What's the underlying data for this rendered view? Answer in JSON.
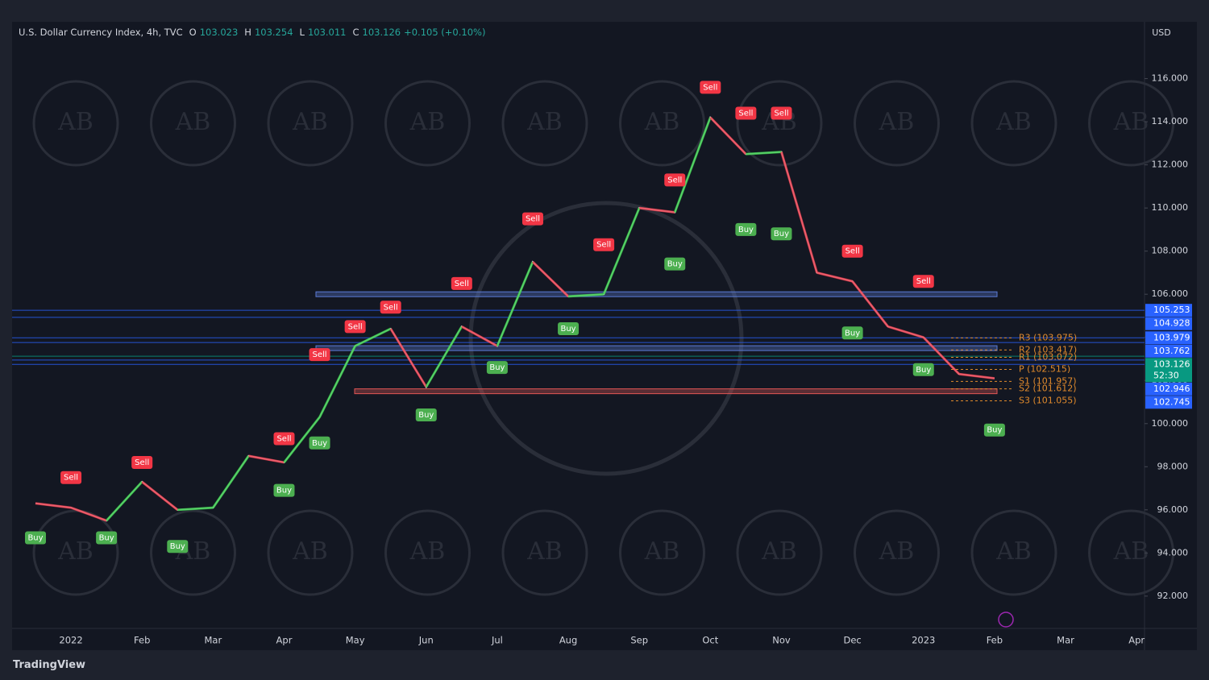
{
  "chart_data": {
    "type": "line",
    "title": "U.S. Dollar Currency Index, 4h, TVC",
    "ohlc": [
      {
        "name": "O",
        "value": 103.023
      },
      {
        "name": "H",
        "value": 103.254
      },
      {
        "name": "L",
        "value": 103.011
      },
      {
        "name": "C",
        "value": 103.126
      }
    ],
    "change": "+0.105 (+0.10%)",
    "currency": "USD",
    "categories": [
      null,
      "2022",
      null,
      "Feb",
      null,
      "Mar",
      null,
      "Apr",
      null,
      "May",
      null,
      "Jun",
      null,
      "Jul",
      null,
      "Aug",
      null,
      "Sep",
      null,
      "Oct",
      null,
      "Nov",
      null,
      "Dec",
      null,
      "2023",
      null,
      "Feb",
      null,
      "Mar",
      null,
      "Apr"
    ],
    "values": [
      96.3,
      96.1,
      95.5,
      97.3,
      96.0,
      96.1,
      98.5,
      98.2,
      100.3,
      103.6,
      104.4,
      101.7,
      104.5,
      103.6,
      107.5,
      105.9,
      106.0,
      110.0,
      109.8,
      114.2,
      112.5,
      112.6,
      107.0,
      106.6,
      104.5,
      104.0,
      102.3,
      102.1,
      null,
      null,
      null,
      null
    ],
    "color": "#d1d4dc",
    "ylim": [
      90.5,
      118.6
    ],
    "yticks": [
      {
        "value": 92,
        "label": "92.000"
      },
      {
        "value": 94,
        "label": "94.000"
      },
      {
        "value": 96,
        "label": "96.000"
      },
      {
        "value": 98,
        "label": "98.000"
      },
      {
        "value": 100,
        "label": "100.000"
      },
      {
        "value": 102,
        "label": "102.000"
      },
      {
        "value": 104,
        "label": "104.000"
      },
      {
        "value": 106,
        "label": "106.000"
      },
      {
        "value": 108,
        "label": "108.000"
      },
      {
        "value": 110,
        "label": "110.000"
      },
      {
        "value": 112,
        "label": "112.000"
      },
      {
        "value": 114,
        "label": "114.000"
      },
      {
        "value": 116,
        "label": "116.000"
      }
    ],
    "grid": false,
    "signals": [
      {
        "label": "Sell",
        "category": 1,
        "value": 96.9
      },
      {
        "label": "Buy",
        "category": 0,
        "value": 95.3
      },
      {
        "label": "Buy",
        "category": 2,
        "value": 95.3
      },
      {
        "label": "Sell",
        "category": 3,
        "value": 97.6
      },
      {
        "label": "Buy",
        "category": 4,
        "value": 94.9
      },
      {
        "label": "Sell",
        "category": 7,
        "value": 98.7
      },
      {
        "label": "Buy",
        "category": 7,
        "value": 97.5
      },
      {
        "label": "Sell",
        "category": 8,
        "value": 102.6
      },
      {
        "label": "Buy",
        "category": 8,
        "value": 99.7
      },
      {
        "label": "Sell",
        "category": 9,
        "value": 103.9
      },
      {
        "label": "Sell",
        "category": 10,
        "value": 104.8
      },
      {
        "label": "Buy",
        "category": 11,
        "value": 101.0
      },
      {
        "label": "Sell",
        "category": 12,
        "value": 105.9
      },
      {
        "label": "Buy",
        "category": 13,
        "value": 103.2
      },
      {
        "label": "Sell",
        "category": 14,
        "value": 108.9
      },
      {
        "label": "Buy",
        "category": 15,
        "value": 105.0
      },
      {
        "label": "Sell",
        "category": 16,
        "value": 107.7
      },
      {
        "label": "Sell",
        "category": 18,
        "value": 110.7
      },
      {
        "label": "Buy",
        "category": 18,
        "value": 108.0
      },
      {
        "label": "Sell",
        "category": 19,
        "value": 115.0
      },
      {
        "label": "Buy",
        "category": 20,
        "value": 109.6
      },
      {
        "label": "Sell",
        "category": 20,
        "value": 113.8
      },
      {
        "label": "Sell",
        "category": 21,
        "value": 113.8
      },
      {
        "label": "Buy",
        "category": 21,
        "value": 109.4
      },
      {
        "label": "Sell",
        "category": 23,
        "value": 107.4
      },
      {
        "label": "Buy",
        "category": 23,
        "value": 104.8
      },
      {
        "label": "Sell",
        "category": 25,
        "value": 106.0
      },
      {
        "label": "Buy",
        "category": 25,
        "value": 103.1
      },
      {
        "label": "Buy",
        "category": 27,
        "value": 100.3
      }
    ],
    "zones": [
      {
        "value": 106.0,
        "color": "#5b7bd5"
      },
      {
        "value": 103.5,
        "color": "#5b7bd5"
      },
      {
        "value": 101.5,
        "color": "#e05555"
      }
    ],
    "price_tags": [
      {
        "value": 105.253,
        "color": "#2962ff"
      },
      {
        "value": 104.928,
        "color": "#2962ff"
      },
      {
        "value": 103.979,
        "color": "#2962ff"
      },
      {
        "value": 103.762,
        "color": "#2962ff"
      },
      {
        "value": 103.126,
        "color": "#089981",
        "countdown": "52:30"
      },
      {
        "value": 102.946,
        "color": "#2962ff"
      },
      {
        "value": 102.745,
        "color": "#2962ff"
      }
    ],
    "pivots": [
      {
        "value": 103.975,
        "label": "R3 (103.975)"
      },
      {
        "value": 103.417,
        "label": "R2 (103.417)"
      },
      {
        "value": 103.072,
        "label": "R1 (103.072)"
      },
      {
        "value": 102.515,
        "label": "P (102.515)"
      },
      {
        "value": 101.957,
        "label": "S1 (101.957)"
      },
      {
        "value": 101.612,
        "label": "S2 (101.612)"
      },
      {
        "value": 101.055,
        "label": "S3 (101.055)"
      }
    ],
    "pivot_color": "#e08a2c",
    "watermark": "AB",
    "footer": "TradingView"
  }
}
